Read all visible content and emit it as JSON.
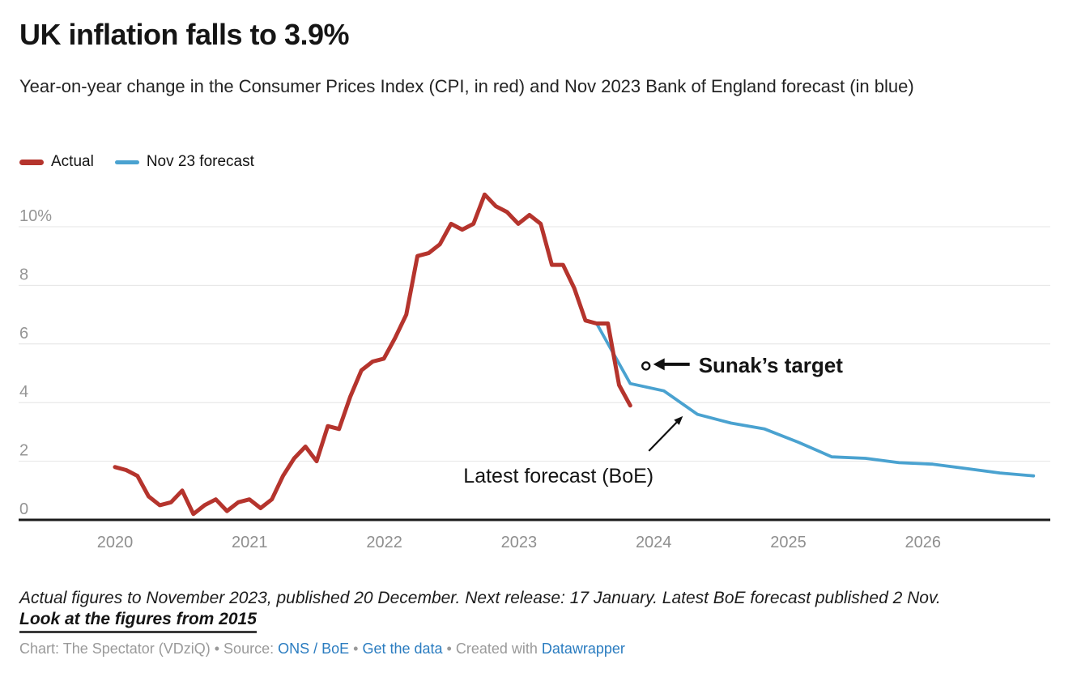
{
  "header": {
    "title": "UK inflation falls to 3.9%",
    "subtitle": "Year-on-year change in the Consumer Prices Index (CPI, in red) and Nov 2023 Bank of England forecast (in blue)"
  },
  "legend": {
    "items": [
      {
        "label": "Actual",
        "color": "#b5342d"
      },
      {
        "label": "Nov 23 forecast",
        "color": "#4aa2d0"
      }
    ]
  },
  "chart_data": {
    "type": "line",
    "title": "UK inflation falls to 3.9%",
    "xlabel": "",
    "ylabel": "",
    "ylim": [
      0,
      11.5
    ],
    "yticks": [
      0,
      2,
      4,
      6,
      8,
      10
    ],
    "ytick_labels": [
      "0",
      "2",
      "4",
      "6",
      "8",
      "10%"
    ],
    "x_tick_years": [
      2020,
      2021,
      2022,
      2023,
      2024,
      2025,
      2026
    ],
    "x_unit": "month index, 0 = Jan 2020",
    "grid": "horizontal",
    "legend_position": "top-left",
    "series": [
      {
        "name": "Actual",
        "color": "#b5342d",
        "stroke_width": 5,
        "start_month": 0,
        "frequency": "monthly",
        "values": [
          1.8,
          1.7,
          1.5,
          0.8,
          0.5,
          0.6,
          1.0,
          0.2,
          0.5,
          0.7,
          0.3,
          0.6,
          0.7,
          0.4,
          0.7,
          1.5,
          2.1,
          2.5,
          2.0,
          3.2,
          3.1,
          4.2,
          5.1,
          5.4,
          5.5,
          6.2,
          7.0,
          9.0,
          9.1,
          9.4,
          10.1,
          9.9,
          10.1,
          11.1,
          10.7,
          10.5,
          10.1,
          10.4,
          10.1,
          8.7,
          8.7,
          7.9,
          6.8,
          6.7,
          6.7,
          4.6,
          3.9
        ]
      },
      {
        "name": "Nov 23 forecast",
        "color": "#4aa2d0",
        "stroke_width": 3.8,
        "frequency": "quarterly",
        "x_months": [
          43,
          46,
          49,
          52,
          55,
          58,
          61,
          64,
          67,
          70,
          73,
          76,
          79,
          82
        ],
        "values": [
          6.7,
          4.65,
          4.4,
          3.6,
          3.3,
          3.1,
          2.65,
          2.15,
          2.1,
          1.95,
          1.9,
          1.75,
          1.6,
          1.5
        ]
      }
    ],
    "annotations": [
      {
        "id": "sunak-target",
        "label": "Sunak’s target",
        "marker": "open-circle",
        "x_month": 47.4,
        "value": 5.25
      },
      {
        "id": "latest-forecast",
        "label": "Latest forecast (BoE)",
        "arrow_points_to_x_month": 50.7,
        "arrow_points_to_value": 3.54
      }
    ]
  },
  "footer": {
    "note": "Actual figures to November 2023, published 20 December. Next release: 17 January. Latest BoE forecast published 2 Nov.",
    "link_label": "Look at the figures from 2015",
    "attribution": {
      "prefix": "Chart: The Spectator (VDziQ) • Source: ",
      "source_link": "ONS / BoE",
      "sep1": " • ",
      "data_link": "Get the data",
      "sep2": " • Created with ",
      "tool_link": "Datawrapper"
    }
  },
  "colors": {
    "actual_line": "#b5342d",
    "forecast_line": "#4aa2d0",
    "baseline": "#1a1a1a",
    "gridline": "#e4e4e4",
    "axis_label": "#8f8f8f",
    "link_blue": "#2a7cc0"
  }
}
